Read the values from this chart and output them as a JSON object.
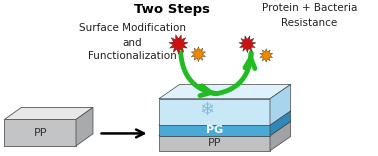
{
  "title": "Two Steps",
  "subtitle_line1": "Surface Modification",
  "subtitle_line2": "and",
  "subtitle_line3": "Functionalization",
  "top_right_label_line1": "Protein + Bacteria",
  "top_right_label_line2": "Resistance",
  "pp_label": "PP",
  "pg_label": "PG",
  "pp2_label": "PP"
}
